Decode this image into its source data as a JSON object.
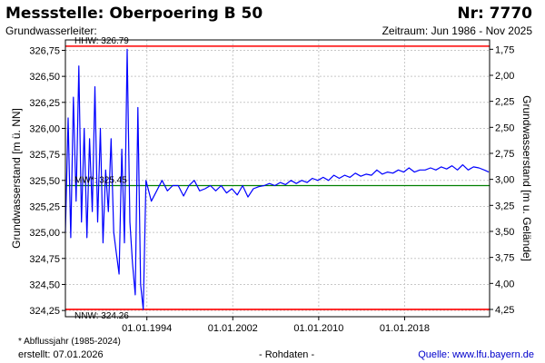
{
  "header": {
    "title": "Messstelle: Oberpoering B 50",
    "number": "Nr: 7770",
    "aquifer_label": "Grundwasserleiter:",
    "period": "Zeitraum: Jun 1986 - Nov 2025"
  },
  "footer": {
    "footnote": "* Abflussjahr (1985-2024)",
    "created": "erstellt:  07.01.2026",
    "raw_note": "- Rohdaten -",
    "source": "Quelle: www.lfu.bayern.de"
  },
  "colors": {
    "series": "#0000ff",
    "extreme_lines": "#ff0000",
    "mean_line": "#008000",
    "grid": "#c8c8c8"
  },
  "chart_data": {
    "type": "line",
    "ylabel": "Grundwasserstand [m ü. NN]",
    "y2label": "Grundwasserstand [m u. Gelände]",
    "ylim": [
      324.19,
      326.85
    ],
    "y2lim": [
      4.32,
      1.66
    ],
    "yticks": [
      "326,75",
      "326,50",
      "326,25",
      "326,00",
      "325,75",
      "325,50",
      "325,25",
      "325,00",
      "324,75",
      "324,50",
      "324,25"
    ],
    "y2ticks": [
      "1,75",
      "2,00",
      "2,25",
      "2,50",
      "2,75",
      "3,00",
      "3,25",
      "3,50",
      "3,75",
      "4,00",
      "4,25"
    ],
    "xlim": [
      "1986-06-01",
      "2025-11-30"
    ],
    "xticks": [
      {
        "date": "1994-01-01",
        "label": "01.01.1994"
      },
      {
        "date": "2002-01-01",
        "label": "01.01.2002"
      },
      {
        "date": "2010-01-01",
        "label": "01.01.2010"
      },
      {
        "date": "2018-01-01",
        "label": "01.01.2018"
      }
    ],
    "grid": true,
    "reference_lines": [
      {
        "name": "HHW",
        "label": "HHW: 326.79",
        "value": 326.79
      },
      {
        "name": "NNW",
        "label": "NNW: 324.26",
        "value": 324.26
      },
      {
        "name": "MW",
        "label": "MW*: 325.45",
        "value": 325.45
      }
    ],
    "series": [
      {
        "x": [
          "1986-06",
          "1986-09",
          "1986-12",
          "1987-03",
          "1987-06",
          "1987-09",
          "1987-12",
          "1988-03",
          "1988-06",
          "1988-09",
          "1988-12",
          "1989-03",
          "1989-06",
          "1989-09",
          "1989-12",
          "1990-03",
          "1990-06",
          "1990-09",
          "1990-12",
          "1991-03",
          "1991-06",
          "1991-09",
          "1991-12",
          "1992-03",
          "1992-06",
          "1992-09",
          "1992-12",
          "1993-03",
          "1993-06",
          "1993-09",
          "1993-12",
          "1994-06",
          "1994-12",
          "1995-06",
          "1995-12",
          "1996-06",
          "1996-12",
          "1997-06",
          "1997-12",
          "1998-06",
          "1998-12",
          "1999-06",
          "1999-12",
          "2000-06",
          "2000-12",
          "2001-06",
          "2001-12",
          "2002-06",
          "2002-12",
          "2003-06",
          "2003-12",
          "2004-06",
          "2004-12",
          "2005-06",
          "2005-12",
          "2006-06",
          "2006-12",
          "2007-06",
          "2007-12",
          "2008-06",
          "2008-12",
          "2009-06",
          "2009-12",
          "2010-06",
          "2010-12",
          "2011-06",
          "2011-12",
          "2012-06",
          "2012-12",
          "2013-06",
          "2013-12",
          "2014-06",
          "2014-12",
          "2015-06",
          "2015-12",
          "2016-06",
          "2016-12",
          "2017-06",
          "2017-12",
          "2018-06",
          "2018-12",
          "2019-06",
          "2019-12",
          "2020-06",
          "2020-12",
          "2021-06",
          "2021-12",
          "2022-06",
          "2022-12",
          "2023-06",
          "2023-12",
          "2024-06",
          "2024-12",
          "2025-06",
          "2025-11"
        ],
        "values": [
          325.0,
          326.1,
          324.95,
          326.3,
          325.3,
          326.6,
          325.1,
          326.0,
          324.95,
          325.9,
          325.2,
          326.4,
          325.1,
          326.0,
          324.9,
          325.6,
          325.2,
          325.9,
          325.0,
          324.8,
          324.6,
          325.8,
          324.9,
          326.76,
          325.1,
          324.7,
          324.4,
          326.2,
          324.5,
          324.26,
          325.5,
          325.3,
          325.4,
          325.5,
          325.4,
          325.45,
          325.45,
          325.35,
          325.45,
          325.5,
          325.4,
          325.42,
          325.45,
          325.4,
          325.45,
          325.38,
          325.42,
          325.36,
          325.45,
          325.34,
          325.42,
          325.44,
          325.45,
          325.47,
          325.45,
          325.48,
          325.46,
          325.5,
          325.47,
          325.5,
          325.48,
          325.52,
          325.5,
          325.53,
          325.5,
          325.55,
          325.52,
          325.55,
          325.53,
          325.57,
          325.54,
          325.56,
          325.55,
          325.6,
          325.56,
          325.58,
          325.57,
          325.6,
          325.58,
          325.62,
          325.58,
          325.6,
          325.6,
          325.62,
          325.6,
          325.63,
          325.61,
          325.64,
          325.6,
          325.65,
          325.6,
          325.63,
          325.62,
          325.6,
          325.58
        ]
      }
    ]
  }
}
